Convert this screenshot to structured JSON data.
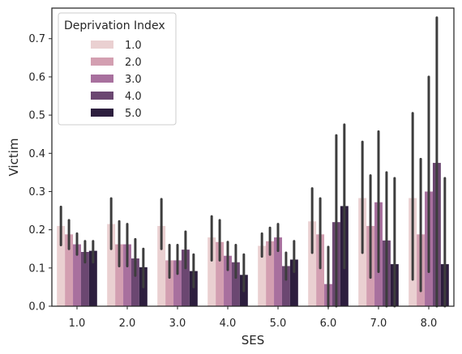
{
  "chart_data": {
    "type": "bar",
    "xlabel": "SES",
    "ylabel": "Victim",
    "ylim": [
      0,
      0.78
    ],
    "yticks": [
      "0.0",
      "0.1",
      "0.2",
      "0.3",
      "0.4",
      "0.5",
      "0.6",
      "0.7"
    ],
    "categories": [
      "1.0",
      "2.0",
      "3.0",
      "4.0",
      "5.0",
      "6.0",
      "7.0",
      "8.0"
    ],
    "legend": {
      "title": "Deprivation Index",
      "placement": "top-left"
    },
    "grid": false,
    "series": [
      {
        "name": "1.0",
        "color": "#ead0d1",
        "values": [
          0.21,
          0.215,
          0.21,
          0.18,
          0.158,
          0.222,
          0.283,
          0.283
        ],
        "ci": [
          [
            0.16,
            0.26
          ],
          [
            0.15,
            0.282
          ],
          [
            0.15,
            0.28
          ],
          [
            0.12,
            0.235
          ],
          [
            0.13,
            0.19
          ],
          [
            0.14,
            0.308
          ],
          [
            0.14,
            0.43
          ],
          [
            0.07,
            0.505
          ]
        ]
      },
      {
        "name": "2.0",
        "color": "#d39fb1",
        "values": [
          0.188,
          0.162,
          0.12,
          0.168,
          0.17,
          0.188,
          0.21,
          0.188
        ],
        "ci": [
          [
            0.15,
            0.225
          ],
          [
            0.105,
            0.222
          ],
          [
            0.075,
            0.16
          ],
          [
            0.12,
            0.225
          ],
          [
            0.135,
            0.205
          ],
          [
            0.1,
            0.282
          ],
          [
            0.075,
            0.342
          ],
          [
            0.04,
            0.385
          ]
        ]
      },
      {
        "name": "3.0",
        "color": "#a8709e",
        "values": [
          0.162,
          0.162,
          0.12,
          0.132,
          0.18,
          0.058,
          0.272,
          0.3
        ],
        "ci": [
          [
            0.135,
            0.19
          ],
          [
            0.105,
            0.215
          ],
          [
            0.085,
            0.16
          ],
          [
            0.095,
            0.168
          ],
          [
            0.145,
            0.215
          ],
          [
            0.0,
            0.155
          ],
          [
            0.09,
            0.457
          ],
          [
            0.09,
            0.6
          ]
        ]
      },
      {
        "name": "4.0",
        "color": "#6b4771",
        "values": [
          0.142,
          0.125,
          0.148,
          0.115,
          0.105,
          0.22,
          0.172,
          0.375
        ],
        "ci": [
          [
            0.115,
            0.17
          ],
          [
            0.08,
            0.175
          ],
          [
            0.1,
            0.195
          ],
          [
            0.075,
            0.16
          ],
          [
            0.07,
            0.14
          ],
          [
            0.0,
            0.447
          ],
          [
            0.0,
            0.35
          ],
          [
            0.0,
            0.755
          ]
        ]
      },
      {
        "name": "5.0",
        "color": "#2d1e3e",
        "values": [
          0.145,
          0.102,
          0.092,
          0.082,
          0.122,
          0.262,
          0.11,
          0.11
        ],
        "ci": [
          [
            0.115,
            0.17
          ],
          [
            0.05,
            0.15
          ],
          [
            0.05,
            0.135
          ],
          [
            0.04,
            0.135
          ],
          [
            0.09,
            0.17
          ],
          [
            0.1,
            0.475
          ],
          [
            0.0,
            0.335
          ],
          [
            0.0,
            0.335
          ]
        ]
      }
    ]
  }
}
